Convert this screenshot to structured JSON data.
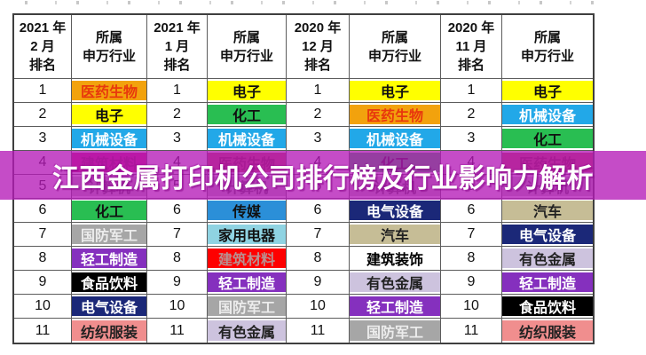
{
  "banner": {
    "text": "江西金属打印机公司排行榜及行业影响力解析",
    "bg_color": "#C63EC6",
    "text_color": "#FFFFFF"
  },
  "table": {
    "columns": [
      {
        "type": "rank",
        "header_lines": [
          "2021 年",
          "2 月",
          "排名"
        ]
      },
      {
        "type": "industry",
        "header_lines": [
          "所属",
          "申万行业"
        ]
      },
      {
        "type": "rank",
        "header_lines": [
          "2021 年",
          "1 月",
          "排名"
        ]
      },
      {
        "type": "industry",
        "header_lines": [
          "所属",
          "申万行业"
        ]
      },
      {
        "type": "rank",
        "header_lines": [
          "2020 年",
          "12 月",
          "排名"
        ]
      },
      {
        "type": "industry",
        "header_lines": [
          "所属",
          "申万行业"
        ]
      },
      {
        "type": "rank",
        "header_lines": [
          "2020 年",
          "11 月",
          "排名"
        ]
      },
      {
        "type": "industry",
        "header_lines": [
          "所属",
          "申万行业"
        ]
      }
    ],
    "rows": [
      {
        "rank": "1",
        "industries": [
          {
            "label": "医药生物",
            "bg": "#F2A20D",
            "fg": "#E8380D"
          },
          {
            "label": "电子",
            "bg": "#FFFF00",
            "fg": "#111111"
          },
          {
            "label": "电子",
            "bg": "#FFFF00",
            "fg": "#111111"
          },
          {
            "label": "电子",
            "bg": "#FFFF00",
            "fg": "#111111"
          }
        ]
      },
      {
        "rank": "2",
        "industries": [
          {
            "label": "电子",
            "bg": "#FFFF00",
            "fg": "#111111"
          },
          {
            "label": "化工",
            "bg": "#29BE52",
            "fg": "#111111"
          },
          {
            "label": "医药生物",
            "bg": "#F2A20D",
            "fg": "#E8380D"
          },
          {
            "label": "机械设备",
            "bg": "#22A8E8",
            "fg": "#FFFFFF"
          }
        ]
      },
      {
        "rank": "3",
        "industries": [
          {
            "label": "机械设备",
            "bg": "#22A8E8",
            "fg": "#FFFFFF"
          },
          {
            "label": "机械设备",
            "bg": "#22A8E8",
            "fg": "#FFFFFF"
          },
          {
            "label": "机械设备",
            "bg": "#22A8E8",
            "fg": "#FFFFFF"
          },
          {
            "label": "化工",
            "bg": "#29BE52",
            "fg": "#111111"
          }
        ]
      },
      {
        "rank": "4",
        "industries": [
          {
            "label": "建筑材料",
            "bg": "#D0146E",
            "fg": "#8F0A3C"
          },
          {
            "label": "医药生物",
            "bg": "#C0504D",
            "fg": "#7E1F1F"
          },
          {
            "label": "化工",
            "bg": "#29BE52",
            "fg": "#111111"
          },
          {
            "label": "医药生物",
            "bg": "#C0504D",
            "fg": "#7E1F1F"
          }
        ]
      },
      {
        "rank": "5",
        "industries": [
          {
            "label": "计算机",
            "bg": "#BFBFBF",
            "fg": "#4D4D4D"
          },
          {
            "label": "计算机",
            "bg": "#BFBFBF",
            "fg": "#4D4D4D"
          },
          {
            "label": "计算机",
            "bg": "#BFBFBF",
            "fg": "#4D4D4D"
          },
          {
            "label": "计算机",
            "bg": "#BFBFBF",
            "fg": "#4D4D4D"
          }
        ]
      },
      {
        "rank": "6",
        "industries": [
          {
            "label": "化工",
            "bg": "#29BE52",
            "fg": "#111111"
          },
          {
            "label": "传媒",
            "bg": "#2B8FD8",
            "fg": "#111111"
          },
          {
            "label": "电气设备",
            "bg": "#1B2878",
            "fg": "#FFFFFF"
          },
          {
            "label": "汽车",
            "bg": "#C6BD96",
            "fg": "#222222"
          }
        ]
      },
      {
        "rank": "7",
        "industries": [
          {
            "label": "国防军工",
            "bg": "#A6A6A6",
            "fg": "#ECECEC"
          },
          {
            "label": "家用电器",
            "bg": "#8FD3E2",
            "fg": "#111111"
          },
          {
            "label": "汽车",
            "bg": "#C6BD96",
            "fg": "#222222"
          },
          {
            "label": "电气设备",
            "bg": "#1B2878",
            "fg": "#FFFFFF"
          }
        ]
      },
      {
        "rank": "8",
        "industries": [
          {
            "label": "轻工制造",
            "bg": "#8530BE",
            "fg": "#FFFFFF"
          },
          {
            "label": "建筑材料",
            "bg": "#FE0000",
            "fg": "#B98F8F"
          },
          {
            "label": "建筑装饰",
            "bg": "#FFFFFF",
            "fg": "#000000"
          },
          {
            "label": "有色金属",
            "bg": "#CDC3DE",
            "fg": "#222222"
          }
        ]
      },
      {
        "rank": "9",
        "industries": [
          {
            "label": "食品饮料",
            "bg": "#000000",
            "fg": "#FFFFFF"
          },
          {
            "label": "轻工制造",
            "bg": "#8530BE",
            "fg": "#FFFFFF"
          },
          {
            "label": "有色金属",
            "bg": "#CDC3DE",
            "fg": "#222222"
          },
          {
            "label": "轻工制造",
            "bg": "#8530BE",
            "fg": "#FFFFFF"
          }
        ]
      },
      {
        "rank": "10",
        "industries": [
          {
            "label": "电气设备",
            "bg": "#1B2878",
            "fg": "#FFFFFF"
          },
          {
            "label": "国防军工",
            "bg": "#A6A6A6",
            "fg": "#ECECEC"
          },
          {
            "label": "轻工制造",
            "bg": "#8530BE",
            "fg": "#FFFFFF"
          },
          {
            "label": "食品饮料",
            "bg": "#000000",
            "fg": "#FFFFFF"
          }
        ]
      },
      {
        "rank": "11",
        "industries": [
          {
            "label": "纺织服装",
            "bg": "#F08E8E",
            "fg": "#222222"
          },
          {
            "label": "有色金属",
            "bg": "#CDC3DE",
            "fg": "#222222"
          },
          {
            "label": "国防军工",
            "bg": "#A6A6A6",
            "fg": "#ECECEC"
          },
          {
            "label": "纺织服装",
            "bg": "#F08E8E",
            "fg": "#222222"
          }
        ]
      }
    ]
  },
  "chart_data": {
    "type": "table",
    "title": "江西金属打印机公司排行榜及行业影响力解析",
    "columns": [
      "2021年2月排名",
      "所属申万行业",
      "2021年1月排名",
      "所属申万行业",
      "2020年12月排名",
      "所属申万行业",
      "2020年11月排名",
      "所属申万行业"
    ],
    "rows": [
      [
        "1",
        "医药生物",
        "1",
        "电子",
        "1",
        "电子",
        "1",
        "电子"
      ],
      [
        "2",
        "电子",
        "2",
        "化工",
        "2",
        "医药生物",
        "2",
        "机械设备"
      ],
      [
        "3",
        "机械设备",
        "3",
        "机械设备",
        "3",
        "机械设备",
        "3",
        "化工"
      ],
      [
        "4",
        "建筑材料",
        "4",
        "医药生物",
        "4",
        "化工",
        "4",
        "医药生物"
      ],
      [
        "5",
        "计算机",
        "5",
        "计算机",
        "5",
        "计算机",
        "5",
        "计算机"
      ],
      [
        "6",
        "化工",
        "6",
        "传媒",
        "6",
        "电气设备",
        "6",
        "汽车"
      ],
      [
        "7",
        "国防军工",
        "7",
        "家用电器",
        "7",
        "汽车",
        "7",
        "电气设备"
      ],
      [
        "8",
        "轻工制造",
        "8",
        "建筑材料",
        "8",
        "建筑装饰",
        "8",
        "有色金属"
      ],
      [
        "9",
        "食品饮料",
        "9",
        "轻工制造",
        "9",
        "有色金属",
        "9",
        "轻工制造"
      ],
      [
        "10",
        "电气设备",
        "10",
        "国防军工",
        "10",
        "轻工制造",
        "10",
        "食品饮料"
      ],
      [
        "11",
        "纺织服装",
        "11",
        "有色金属",
        "11",
        "国防军工",
        "11",
        "纺织服装"
      ]
    ]
  }
}
